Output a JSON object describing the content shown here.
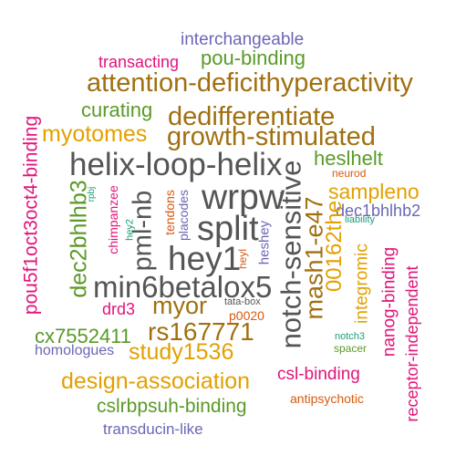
{
  "words": {
    "interchangeable": "interchangeable",
    "transacting": "transacting",
    "pou_binding": "pou-binding",
    "attention": "attention-deficithyperactivity",
    "curating": "curating",
    "dedifferentiate": "dedifferentiate",
    "myotomes": "myotomes",
    "growth_stimulated": "growth-stimulated",
    "helix_loop_helix": "helix-loop-helix",
    "heslhelt": "heslhelt",
    "neurod": "neurod",
    "sampleno": "sampleno",
    "wrpw": "wrpw",
    "dec1bhlhb2": "dec1bhlhb2",
    "liability": "liability",
    "split": "split",
    "hey1": "hey1",
    "min6betalox5": "min6betalox5",
    "myor": "myor",
    "rs167771": "rs167771",
    "study1536": "study1536",
    "design_association": "design-association",
    "cslrbpsuh_binding": "cslrbpsuh-binding",
    "transducin_like": "transducin-like",
    "csl_binding": "csl-binding",
    "antipsychotic": "antipsychotic",
    "drd3": "drd3",
    "cx7552411": "cx7552411",
    "homologues": "homologues",
    "tata_box": "tata-box",
    "p0020": "p0020",
    "notch3": "notch3",
    "spacer": "spacer",
    "pou5f1oct3oct4_binding": "pou5f1oct3oct4-binding",
    "rpbj": "rpbj",
    "dec2bhlhb3": "dec2bhlhb3",
    "chimpanzee": "chimpanzee",
    "hey2": "hey2",
    "pml_nb": "pml-nb",
    "tendons": "tendons",
    "placodes": "placodes",
    "heyl": "heyl",
    "heshey": "heshey",
    "notch_sensitive": "notch-sensitive",
    "mash1_e47": "mash1-e47",
    "x00162the": "00162the",
    "integromic": "integromic",
    "nanog_binding": "nanog-binding",
    "receptor_independent": "receptor-independent"
  },
  "colors": {
    "gray": "#555555",
    "brown": "#a07010",
    "green": "#5a9a28",
    "orange": "#e3a000",
    "pink": "#e0157c",
    "purple": "#6b67b5",
    "dark_orange": "#d85a10",
    "teal": "#1b9e77"
  }
}
